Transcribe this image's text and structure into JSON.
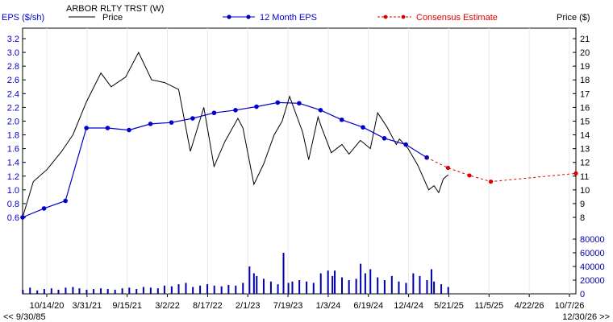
{
  "legend": {
    "eps_axis_label": "EPS ($/sh)",
    "ticker": "ARBOR RLTY TRST (W)",
    "price_series": "Price",
    "eps_series": "12 Month EPS",
    "consensus_series": "Consensus Estimate",
    "price_axis_label": "Price ($)"
  },
  "footer": {
    "left_note": "<< 9/30/85",
    "right_note": "12/30/26 >>"
  },
  "colors": {
    "eps": "#0000cc",
    "consensus": "#dd0000",
    "price": "#000000",
    "volume": "#0000aa"
  },
  "chart_data": {
    "type": "line",
    "x_labels": [
      "10/14/20",
      "3/31/21",
      "9/15/21",
      "3/2/22",
      "8/17/22",
      "2/1/23",
      "7/19/23",
      "1/3/24",
      "6/19/24",
      "12/4/24",
      "5/21/25",
      "11/5/25",
      "4/22/26",
      "10/7/26"
    ],
    "eps_axis": {
      "ticks": [
        "0.6",
        "0.8",
        "1.0",
        "1.2",
        "1.4",
        "1.6",
        "1.8",
        "2.0",
        "2.2",
        "2.4",
        "2.6",
        "2.8",
        "3.0",
        "3.2"
      ],
      "range": [
        0.6,
        3.2
      ]
    },
    "price_axis": {
      "ticks": [
        "8",
        "9",
        "10",
        "11",
        "12",
        "13",
        "14",
        "15",
        "16",
        "17",
        "18",
        "19",
        "20",
        "21"
      ],
      "range": [
        8,
        21
      ]
    },
    "volume_axis": {
      "ticks": [
        "0",
        "20000",
        "40000",
        "60000",
        "80000"
      ],
      "range": [
        0,
        80000
      ]
    },
    "eps_series": [
      {
        "date": "2020-06-30",
        "value": 0.6
      },
      {
        "date": "2020-09-30",
        "value": 0.73
      },
      {
        "date": "2020-12-31",
        "value": 0.84
      },
      {
        "date": "2021-03-31",
        "value": 1.9
      },
      {
        "date": "2021-06-30",
        "value": 1.9
      },
      {
        "date": "2021-09-30",
        "value": 1.87
      },
      {
        "date": "2021-12-31",
        "value": 1.96
      },
      {
        "date": "2022-03-31",
        "value": 1.98
      },
      {
        "date": "2022-06-30",
        "value": 2.04
      },
      {
        "date": "2022-09-30",
        "value": 2.12
      },
      {
        "date": "2022-12-31",
        "value": 2.16
      },
      {
        "date": "2023-03-31",
        "value": 2.21
      },
      {
        "date": "2023-06-30",
        "value": 2.27
      },
      {
        "date": "2023-09-30",
        "value": 2.26
      },
      {
        "date": "2023-12-31",
        "value": 2.16
      },
      {
        "date": "2024-03-31",
        "value": 2.02
      },
      {
        "date": "2024-06-30",
        "value": 1.91
      },
      {
        "date": "2024-09-30",
        "value": 1.75
      },
      {
        "date": "2024-12-31",
        "value": 1.66
      },
      {
        "date": "2025-03-31",
        "value": 1.47
      }
    ],
    "consensus_series": [
      {
        "date": "2025-03-31",
        "value": 1.47
      },
      {
        "date": "2025-06-30",
        "value": 1.32
      },
      {
        "date": "2025-09-30",
        "value": 1.21
      },
      {
        "date": "2025-12-31",
        "value": 1.12
      },
      {
        "date": "2026-12-31",
        "value": 1.24
      }
    ],
    "price_series": [
      {
        "date": "2020-06-30",
        "value": 8.0
      },
      {
        "date": "2020-08-15",
        "value": 10.6
      },
      {
        "date": "2020-10-14",
        "value": 11.5
      },
      {
        "date": "2020-12-15",
        "value": 12.8
      },
      {
        "date": "2021-02-01",
        "value": 14.0
      },
      {
        "date": "2021-03-31",
        "value": 16.4
      },
      {
        "date": "2021-06-01",
        "value": 18.5
      },
      {
        "date": "2021-07-15",
        "value": 17.5
      },
      {
        "date": "2021-09-15",
        "value": 18.2
      },
      {
        "date": "2021-11-10",
        "value": 20.0
      },
      {
        "date": "2022-01-05",
        "value": 18.0
      },
      {
        "date": "2022-03-02",
        "value": 17.8
      },
      {
        "date": "2022-05-01",
        "value": 17.3
      },
      {
        "date": "2022-06-20",
        "value": 12.8
      },
      {
        "date": "2022-08-17",
        "value": 16.0
      },
      {
        "date": "2022-09-30",
        "value": 11.7
      },
      {
        "date": "2022-11-15",
        "value": 13.5
      },
      {
        "date": "2023-01-10",
        "value": 15.2
      },
      {
        "date": "2023-02-01",
        "value": 14.5
      },
      {
        "date": "2023-03-20",
        "value": 10.4
      },
      {
        "date": "2023-05-01",
        "value": 11.9
      },
      {
        "date": "2023-06-15",
        "value": 14.0
      },
      {
        "date": "2023-07-19",
        "value": 15.0
      },
      {
        "date": "2023-08-20",
        "value": 16.8
      },
      {
        "date": "2023-10-15",
        "value": 14.2
      },
      {
        "date": "2023-11-10",
        "value": 12.2
      },
      {
        "date": "2023-12-20",
        "value": 15.3
      },
      {
        "date": "2024-01-03",
        "value": 14.6
      },
      {
        "date": "2024-02-15",
        "value": 12.7
      },
      {
        "date": "2024-04-01",
        "value": 13.3
      },
      {
        "date": "2024-05-01",
        "value": 12.6
      },
      {
        "date": "2024-06-19",
        "value": 13.6
      },
      {
        "date": "2024-08-01",
        "value": 13.0
      },
      {
        "date": "2024-09-01",
        "value": 15.6
      },
      {
        "date": "2024-10-10",
        "value": 14.6
      },
      {
        "date": "2024-11-20",
        "value": 13.3
      },
      {
        "date": "2024-12-04",
        "value": 13.7
      },
      {
        "date": "2025-01-10",
        "value": 13.0
      },
      {
        "date": "2025-02-20",
        "value": 11.8
      },
      {
        "date": "2025-04-08",
        "value": 10.0
      },
      {
        "date": "2025-05-01",
        "value": 10.3
      },
      {
        "date": "2025-05-21",
        "value": 9.8
      },
      {
        "date": "2025-06-10",
        "value": 10.8
      },
      {
        "date": "2025-07-01",
        "value": 11.1
      }
    ],
    "volume_series": [
      {
        "date": "2020-07-01",
        "value": 6000
      },
      {
        "date": "2020-08-01",
        "value": 9000
      },
      {
        "date": "2020-09-01",
        "value": 5000
      },
      {
        "date": "2020-10-01",
        "value": 7000
      },
      {
        "date": "2020-11-01",
        "value": 8000
      },
      {
        "date": "2020-12-01",
        "value": 6000
      },
      {
        "date": "2021-01-01",
        "value": 9000
      },
      {
        "date": "2021-02-01",
        "value": 10000
      },
      {
        "date": "2021-03-01",
        "value": 8000
      },
      {
        "date": "2021-04-01",
        "value": 6000
      },
      {
        "date": "2021-05-01",
        "value": 7000
      },
      {
        "date": "2021-06-01",
        "value": 8000
      },
      {
        "date": "2021-07-01",
        "value": 7000
      },
      {
        "date": "2021-08-01",
        "value": 6000
      },
      {
        "date": "2021-09-01",
        "value": 8000
      },
      {
        "date": "2021-10-01",
        "value": 9000
      },
      {
        "date": "2021-11-01",
        "value": 7000
      },
      {
        "date": "2021-12-01",
        "value": 10000
      },
      {
        "date": "2022-01-01",
        "value": 9000
      },
      {
        "date": "2022-02-01",
        "value": 8000
      },
      {
        "date": "2022-03-01",
        "value": 12000
      },
      {
        "date": "2022-04-01",
        "value": 11000
      },
      {
        "date": "2022-05-01",
        "value": 14000
      },
      {
        "date": "2022-06-01",
        "value": 16000
      },
      {
        "date": "2022-07-01",
        "value": 10000
      },
      {
        "date": "2022-08-01",
        "value": 12000
      },
      {
        "date": "2022-09-01",
        "value": 14000
      },
      {
        "date": "2022-10-01",
        "value": 12000
      },
      {
        "date": "2022-11-01",
        "value": 11000
      },
      {
        "date": "2022-12-01",
        "value": 13000
      },
      {
        "date": "2023-01-01",
        "value": 12000
      },
      {
        "date": "2023-02-01",
        "value": 16000
      },
      {
        "date": "2023-03-01",
        "value": 40000
      },
      {
        "date": "2023-03-20",
        "value": 30000
      },
      {
        "date": "2023-04-01",
        "value": 26000
      },
      {
        "date": "2023-05-01",
        "value": 22000
      },
      {
        "date": "2023-06-01",
        "value": 18000
      },
      {
        "date": "2023-07-01",
        "value": 14000
      },
      {
        "date": "2023-07-25",
        "value": 60000
      },
      {
        "date": "2023-08-15",
        "value": 16000
      },
      {
        "date": "2023-09-01",
        "value": 18000
      },
      {
        "date": "2023-10-01",
        "value": 20000
      },
      {
        "date": "2023-11-01",
        "value": 18000
      },
      {
        "date": "2023-12-01",
        "value": 16000
      },
      {
        "date": "2024-01-01",
        "value": 30000
      },
      {
        "date": "2024-02-01",
        "value": 34000
      },
      {
        "date": "2024-02-20",
        "value": 26000
      },
      {
        "date": "2024-03-01",
        "value": 34000
      },
      {
        "date": "2024-04-01",
        "value": 24000
      },
      {
        "date": "2024-05-01",
        "value": 20000
      },
      {
        "date": "2024-06-01",
        "value": 22000
      },
      {
        "date": "2024-06-20",
        "value": 44000
      },
      {
        "date": "2024-07-10",
        "value": 30000
      },
      {
        "date": "2024-08-01",
        "value": 36000
      },
      {
        "date": "2024-09-01",
        "value": 24000
      },
      {
        "date": "2024-10-01",
        "value": 20000
      },
      {
        "date": "2024-11-01",
        "value": 26000
      },
      {
        "date": "2024-12-01",
        "value": 18000
      },
      {
        "date": "2025-01-01",
        "value": 16000
      },
      {
        "date": "2025-02-01",
        "value": 30000
      },
      {
        "date": "2025-03-01",
        "value": 26000
      },
      {
        "date": "2025-04-01",
        "value": 20000
      },
      {
        "date": "2025-04-20",
        "value": 36000
      },
      {
        "date": "2025-05-01",
        "value": 18000
      },
      {
        "date": "2025-06-01",
        "value": 14000
      },
      {
        "date": "2025-07-01",
        "value": 10000
      }
    ]
  }
}
